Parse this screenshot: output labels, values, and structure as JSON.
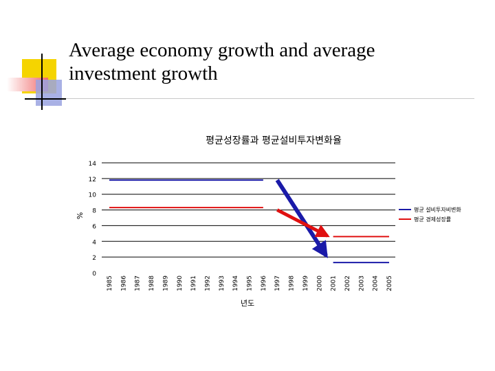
{
  "slide": {
    "title_line1": "Average economy growth and average",
    "title_line2": "investment growth"
  },
  "colors": {
    "blue_series": "#1a1aa8",
    "red_series": "#e01010",
    "deco_yellow": "#f5d400",
    "deco_red": "#f08080",
    "deco_blue": "#9aa3e0",
    "rule": "#c8c8c8"
  },
  "chart_data": {
    "type": "line",
    "title": "평균성장률과 평균설비투자변화율",
    "xlabel": "년도",
    "ylabel": "%",
    "ylim": [
      0,
      14
    ],
    "yticks": [
      0,
      2,
      4,
      6,
      8,
      10,
      12,
      14
    ],
    "grid": "horizontal",
    "legend_position": "right",
    "categories": [
      "1985",
      "1986",
      "1987",
      "1988",
      "1989",
      "1990",
      "1991",
      "1992",
      "1993",
      "1994",
      "1995",
      "1996",
      "1997",
      "1998",
      "1999",
      "2000",
      "2001",
      "2002",
      "2003",
      "2004",
      "2005"
    ],
    "series": [
      {
        "name": "평균 설비투자비변화",
        "color": "#1a1aa8",
        "values": [
          11.8,
          11.8,
          11.8,
          11.8,
          11.8,
          11.8,
          11.8,
          11.8,
          11.8,
          11.8,
          11.8,
          11.8,
          null,
          null,
          null,
          null,
          1.3,
          1.3,
          1.3,
          1.3,
          1.3
        ]
      },
      {
        "name": "평균 경제성장률",
        "color": "#e01010",
        "values": [
          8.3,
          8.3,
          8.3,
          8.3,
          8.3,
          8.3,
          8.3,
          8.3,
          8.3,
          8.3,
          8.3,
          8.3,
          null,
          null,
          null,
          null,
          4.6,
          4.6,
          4.6,
          4.6,
          4.6
        ]
      }
    ],
    "annotations": [
      {
        "type": "arrow",
        "series": "평균 설비투자비변화",
        "from": [
          "1997",
          11.8
        ],
        "to": [
          "2000",
          2.2
        ]
      },
      {
        "type": "arrow",
        "series": "평균 경제성장률",
        "from": [
          "1997",
          8.0
        ],
        "to": [
          "2000",
          4.7
        ]
      }
    ]
  }
}
